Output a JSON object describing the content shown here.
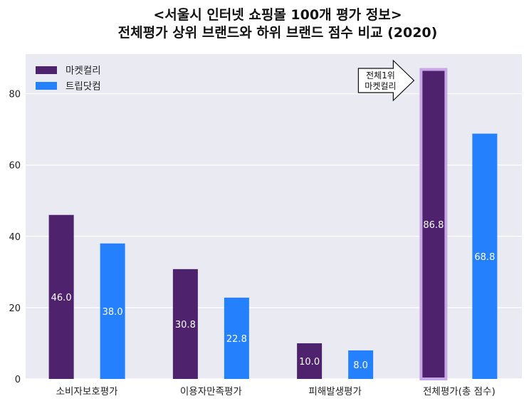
{
  "chart_data": {
    "type": "bar",
    "title": [
      "<서울시 인터넷 쇼핑몰 100개 평가 정보>",
      "전체평가 상위 브랜드와 하위 브랜드 점수 비교 (2020)"
    ],
    "categories": [
      "소비자보호평가",
      "이용자만족평가",
      "피해발생평가",
      "전체평가(총 점수)"
    ],
    "series": [
      {
        "name": "마켓컬리",
        "values": [
          46.0,
          30.8,
          10.0,
          86.8
        ],
        "color": "#4f226e"
      },
      {
        "name": "트립닷컴",
        "values": [
          38.0,
          22.8,
          8.0,
          68.8
        ],
        "color": "#2480fc"
      }
    ],
    "value_labels": {
      "마켓컬리": [
        "46.0",
        "30.8",
        "10.0",
        "86.8"
      ],
      "트립닷컴": [
        "38.0",
        "22.8",
        "8.0",
        "68.8"
      ]
    },
    "yticks": [
      0,
      20,
      40,
      60,
      80
    ],
    "ylim": [
      0,
      91.1
    ],
    "xlabel": "",
    "ylabel": "",
    "grid": true,
    "background_color": "#eaeaf2",
    "legend_position": "top-left",
    "highlight": {
      "series": "마켓컬리",
      "category": "전체평가(총 점수)",
      "color": "#c9a6e6"
    },
    "annotation": {
      "lines": [
        "전체1위",
        "마켓컬리"
      ],
      "category": "전체평가(총 점수)",
      "shape": "right-arrow"
    }
  }
}
